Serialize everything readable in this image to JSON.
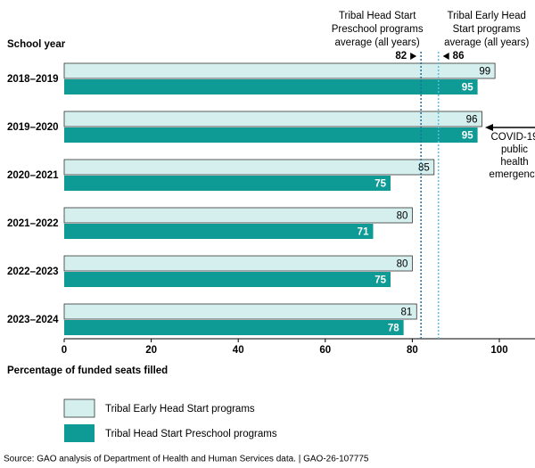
{
  "chart_data": {
    "type": "bar",
    "orientation": "horizontal",
    "category_axis_title": "School year",
    "x_axis_title": "Percentage of funded seats filled",
    "categories": [
      "2018–2019",
      "2019–2020",
      "2020–2021",
      "2021–2022",
      "2022–2023",
      "2023–2024"
    ],
    "series": [
      {
        "name": "Tribal Early Head Start programs",
        "color": "#d4efee",
        "values": [
          99,
          96,
          85,
          80,
          80,
          81
        ]
      },
      {
        "name": "Tribal Head Start Preschool programs",
        "color": "#0e9a95",
        "values": [
          95,
          95,
          75,
          71,
          75,
          78
        ]
      }
    ],
    "xlim": [
      0,
      100
    ],
    "xticks": [
      0,
      20,
      40,
      60,
      80,
      100
    ],
    "reference_lines": [
      {
        "value": 82,
        "color": "#1f6f9a",
        "label_lines": [
          "Tribal Head Start",
          "Preschool programs",
          "average (all years)"
        ]
      },
      {
        "value": 86,
        "color": "#5cc0d8",
        "label_lines": [
          "Tribal Early Head",
          "Start programs",
          "average (all years)"
        ]
      }
    ],
    "annotation": {
      "lines": [
        "COVID-19",
        "public",
        "health",
        "emergency"
      ]
    },
    "source": "Source: GAO analysis of Department of Health and Human Services data.  |  GAO-26-107775"
  }
}
